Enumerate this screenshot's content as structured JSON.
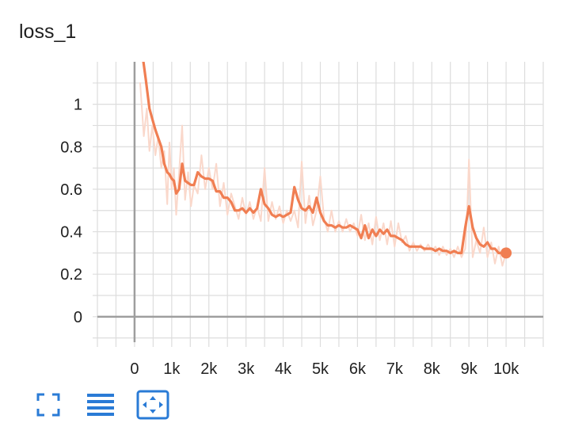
{
  "chart_data": {
    "type": "line",
    "title": "loss_1",
    "xlabel": "",
    "ylabel": "",
    "xlim": [
      -1000,
      11000
    ],
    "ylim": [
      -0.12,
      1.2
    ],
    "x_ticks": [
      0,
      1000,
      2000,
      3000,
      4000,
      5000,
      6000,
      7000,
      8000,
      9000,
      10000
    ],
    "x_tick_labels": [
      "0",
      "1k",
      "2k",
      "3k",
      "4k",
      "5k",
      "6k",
      "7k",
      "8k",
      "9k",
      "10k"
    ],
    "y_ticks": [
      0,
      0.2,
      0.4,
      0.6,
      0.8,
      1.0
    ],
    "y_tick_labels": [
      "0",
      "0.2",
      "0.4",
      "0.6",
      "0.8",
      "1"
    ],
    "grid": true,
    "colors": {
      "smoothed": "#f07e52",
      "raw": "#fad8cb",
      "grid": "#dddddd",
      "axis": "#9e9e9e"
    },
    "series": [
      {
        "role": "raw",
        "x": [
          150,
          250,
          330,
          400,
          480,
          560,
          640,
          720,
          800,
          880,
          940,
          1000,
          1060,
          1120,
          1200,
          1280,
          1360,
          1440,
          1520,
          1600,
          1700,
          1800,
          1900,
          2000,
          2100,
          2200,
          2300,
          2400,
          2500,
          2600,
          2700,
          2800,
          2900,
          3000,
          3100,
          3200,
          3300,
          3400,
          3500,
          3600,
          3700,
          3800,
          3900,
          4000,
          4100,
          4200,
          4300,
          4400,
          4500,
          4600,
          4700,
          4800,
          4900,
          5000,
          5100,
          5200,
          5300,
          5400,
          5500,
          5600,
          5700,
          5800,
          5900,
          6000,
          6100,
          6200,
          6300,
          6400,
          6500,
          6600,
          6700,
          6800,
          6900,
          7000,
          7100,
          7200,
          7300,
          7400,
          7500,
          7600,
          7700,
          7800,
          7900,
          8000,
          8100,
          8200,
          8300,
          8400,
          8500,
          8600,
          8700,
          8800,
          8900,
          8950,
          9000,
          9050,
          9100,
          9200,
          9300,
          9400,
          9500,
          9600,
          9700,
          9800,
          9900,
          10000
        ],
        "values": [
          1.1,
          0.85,
          0.98,
          0.78,
          0.9,
          0.76,
          0.85,
          0.7,
          0.78,
          0.53,
          0.82,
          0.6,
          0.7,
          0.48,
          0.68,
          0.9,
          0.55,
          0.68,
          0.52,
          0.62,
          0.58,
          0.76,
          0.6,
          0.7,
          0.6,
          0.72,
          0.52,
          0.63,
          0.48,
          0.58,
          0.52,
          0.46,
          0.56,
          0.48,
          0.54,
          0.46,
          0.52,
          0.45,
          0.7,
          0.45,
          0.54,
          0.46,
          0.52,
          0.44,
          0.5,
          0.45,
          0.5,
          0.42,
          0.73,
          0.44,
          0.57,
          0.43,
          0.5,
          0.66,
          0.46,
          0.4,
          0.5,
          0.4,
          0.45,
          0.4,
          0.46,
          0.4,
          0.44,
          0.38,
          0.48,
          0.36,
          0.44,
          0.34,
          0.47,
          0.36,
          0.44,
          0.34,
          0.45,
          0.33,
          0.44,
          0.35,
          0.38,
          0.31,
          0.35,
          0.31,
          0.34,
          0.31,
          0.34,
          0.31,
          0.33,
          0.29,
          0.33,
          0.29,
          0.32,
          0.28,
          0.33,
          0.28,
          0.32,
          0.48,
          0.74,
          0.5,
          0.28,
          0.36,
          0.3,
          0.42,
          0.28,
          0.35,
          0.25,
          0.33,
          0.24,
          0.3
        ]
      },
      {
        "role": "smoothed",
        "x": [
          200,
          300,
          400,
          480,
          560,
          640,
          720,
          800,
          880,
          940,
          1000,
          1060,
          1120,
          1200,
          1280,
          1360,
          1440,
          1520,
          1600,
          1700,
          1800,
          1900,
          2000,
          2100,
          2200,
          2300,
          2400,
          2500,
          2600,
          2700,
          2800,
          2900,
          3000,
          3100,
          3200,
          3300,
          3400,
          3500,
          3600,
          3700,
          3800,
          3900,
          4000,
          4100,
          4200,
          4300,
          4400,
          4500,
          4600,
          4700,
          4800,
          4900,
          5000,
          5100,
          5200,
          5300,
          5400,
          5500,
          5600,
          5700,
          5800,
          5900,
          6000,
          6100,
          6200,
          6300,
          6400,
          6500,
          6600,
          6700,
          6800,
          6900,
          7000,
          7100,
          7200,
          7300,
          7400,
          7500,
          7600,
          7700,
          7800,
          7900,
          8000,
          8100,
          8200,
          8300,
          8400,
          8500,
          8600,
          8700,
          8800,
          8900,
          9000,
          9100,
          9200,
          9300,
          9400,
          9500,
          9600,
          9700,
          9800,
          9900,
          10000
        ],
        "values": [
          1.25,
          1.12,
          0.98,
          0.93,
          0.88,
          0.84,
          0.8,
          0.72,
          0.68,
          0.67,
          0.65,
          0.64,
          0.58,
          0.6,
          0.72,
          0.64,
          0.63,
          0.62,
          0.62,
          0.68,
          0.66,
          0.65,
          0.65,
          0.64,
          0.59,
          0.59,
          0.56,
          0.56,
          0.54,
          0.5,
          0.5,
          0.51,
          0.49,
          0.51,
          0.49,
          0.51,
          0.6,
          0.53,
          0.51,
          0.48,
          0.47,
          0.48,
          0.47,
          0.48,
          0.49,
          0.61,
          0.55,
          0.51,
          0.5,
          0.52,
          0.49,
          0.56,
          0.49,
          0.45,
          0.43,
          0.43,
          0.42,
          0.43,
          0.42,
          0.42,
          0.43,
          0.42,
          0.41,
          0.37,
          0.43,
          0.37,
          0.41,
          0.38,
          0.41,
          0.39,
          0.41,
          0.38,
          0.38,
          0.37,
          0.36,
          0.34,
          0.33,
          0.33,
          0.33,
          0.33,
          0.32,
          0.32,
          0.32,
          0.31,
          0.32,
          0.31,
          0.31,
          0.3,
          0.31,
          0.3,
          0.3,
          0.42,
          0.52,
          0.42,
          0.37,
          0.34,
          0.33,
          0.35,
          0.32,
          0.32,
          0.3,
          0.3,
          0.3
        ]
      }
    ]
  },
  "toolbar": {
    "buttons": [
      {
        "name": "fullscreen",
        "icon": "fullscreen-icon"
      },
      {
        "name": "toggle-log-scale",
        "icon": "list-lines-icon"
      },
      {
        "name": "fit-domain",
        "icon": "fit-to-data-icon"
      }
    ],
    "accent_color": "#2a7bd6"
  }
}
